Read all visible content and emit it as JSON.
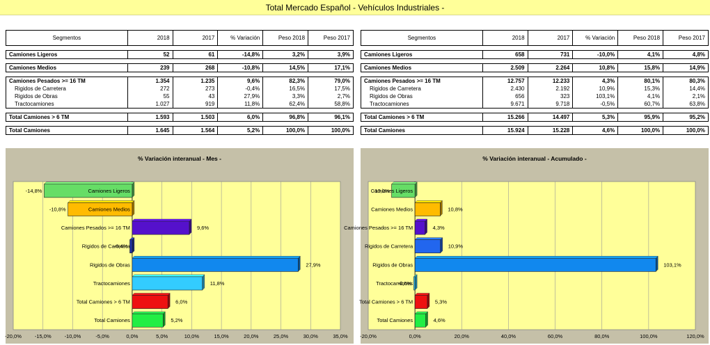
{
  "title": "Total Mercado Español - Vehículos Industriales -",
  "columns": [
    "Segmentos",
    "2018",
    "2017",
    "% Variación",
    "Peso 2018",
    "Peso 2017"
  ],
  "left_table": {
    "rows": [
      {
        "label": "Camiones Ligeros",
        "v2018": "52",
        "v2017": "61",
        "var": "-14,8%",
        "p2018": "3,2%",
        "p2017": "3,9%"
      },
      {
        "label": "Camiones Medios",
        "v2018": "239",
        "v2017": "268",
        "var": "-10,8%",
        "p2018": "14,5%",
        "p2017": "17,1%"
      },
      {
        "label": "Camiones Pesados >= 16 TM",
        "v2018": "1.354",
        "v2017": "1.235",
        "var": "9,6%",
        "p2018": "82,3%",
        "p2017": "79,0%"
      },
      {
        "label": "Rigidos de Carretera",
        "v2018": "272",
        "v2017": "273",
        "var": "-0,4%",
        "p2018": "16,5%",
        "p2017": "17,5%"
      },
      {
        "label": "Rigidos de Obras",
        "v2018": "55",
        "v2017": "43",
        "var": "27,9%",
        "p2018": "3,3%",
        "p2017": "2,7%"
      },
      {
        "label": "Tractocamiones",
        "v2018": "1.027",
        "v2017": "919",
        "var": "11,8%",
        "p2018": "62,4%",
        "p2017": "58,8%"
      },
      {
        "label": "Total Camiones  > 6 TM",
        "v2018": "1.593",
        "v2017": "1.503",
        "var": "6,0%",
        "p2018": "96,8%",
        "p2017": "96,1%"
      },
      {
        "label": "Total Camiones",
        "v2018": "1.645",
        "v2017": "1.564",
        "var": "5,2%",
        "p2018": "100,0%",
        "p2017": "100,0%"
      }
    ]
  },
  "right_table": {
    "rows": [
      {
        "label": "Camiones Ligeros",
        "v2018": "658",
        "v2017": "731",
        "var": "-10,0%",
        "p2018": "4,1%",
        "p2017": "4,8%"
      },
      {
        "label": "Camiones Medios",
        "v2018": "2.509",
        "v2017": "2.264",
        "var": "10,8%",
        "p2018": "15,8%",
        "p2017": "14,9%"
      },
      {
        "label": "Camiones Pesados >= 16 TM",
        "v2018": "12.757",
        "v2017": "12.233",
        "var": "4,3%",
        "p2018": "80,1%",
        "p2017": "80,3%"
      },
      {
        "label": "Rigidos de Carretera",
        "v2018": "2.430",
        "v2017": "2.192",
        "var": "10,9%",
        "p2018": "15,3%",
        "p2017": "14,4%"
      },
      {
        "label": "Rigidos de Obras",
        "v2018": "656",
        "v2017": "323",
        "var": "103,1%",
        "p2018": "4,1%",
        "p2017": "2,1%"
      },
      {
        "label": "Tractocamiones",
        "v2018": "9.671",
        "v2017": "9.718",
        "var": "-0,5%",
        "p2018": "60,7%",
        "p2017": "63,8%"
      },
      {
        "label": "Total Camiones  > 6 TM",
        "v2018": "15.266",
        "v2017": "14.497",
        "var": "5,3%",
        "p2018": "95,9%",
        "p2017": "95,2%"
      },
      {
        "label": "Total Camiones",
        "v2018": "15.924",
        "v2017": "15.228",
        "var": "4,6%",
        "p2018": "100,0%",
        "p2017": "100,0%"
      }
    ]
  },
  "chart_data": [
    {
      "type": "bar",
      "orientation": "horizontal",
      "title": "% Variación interanual - Mes -",
      "categories": [
        "Camiones Ligeros",
        "Camiones Medios",
        "Camiones Pesados >= 16 TM",
        "Rigidos de Carretera",
        "Rigidos de Obras",
        "Tractocamiones",
        "Total Camiones  > 6 TM",
        "Total Camiones"
      ],
      "values": [
        -14.8,
        -10.8,
        9.6,
        -0.4,
        27.9,
        11.8,
        6.0,
        5.2
      ],
      "data_labels": [
        "-14,8%",
        "-10,8%",
        "9,6%",
        "-0,4%",
        "27,9%",
        "11,8%",
        "6,0%",
        "5,2%"
      ],
      "xlim": [
        -20,
        35
      ],
      "xticks": [
        "-20,0%",
        "-15,0%",
        "-10,0%",
        "-5,0%",
        "0,0%",
        "5,0%",
        "10,0%",
        "15,0%",
        "20,0%",
        "25,0%",
        "30,0%",
        "35,0%"
      ],
      "grid": true,
      "colors": [
        "#66dd66",
        "#ffbb00",
        "#5511cc",
        "#2233aa",
        "#1188ee",
        "#33ccff",
        "#ee1111",
        "#22ee44"
      ]
    },
    {
      "type": "bar",
      "orientation": "horizontal",
      "title": "% Variación interanual - Acumulado -",
      "categories": [
        "Camiones Ligeros",
        "Camiones Medios",
        "Camiones Pesados >= 16 TM",
        "Rigidos de Carretera",
        "Rigidos de Obras",
        "Tractocamiones",
        "Total Camiones  > 6 TM",
        "Total Camiones"
      ],
      "values": [
        -10.0,
        10.8,
        4.3,
        10.9,
        103.1,
        -0.5,
        5.3,
        4.6
      ],
      "data_labels": [
        "-10,0%",
        "10,8%",
        "4,3%",
        "10,9%",
        "103,1%",
        "-0,5%",
        "5,3%",
        "4,6%"
      ],
      "xlim": [
        -20,
        120
      ],
      "xticks": [
        "-20,0%",
        "0,0%",
        "20,0%",
        "40,0%",
        "60,0%",
        "80,0%",
        "100,0%",
        "120,0%"
      ],
      "grid": true,
      "colors": [
        "#66dd66",
        "#ffbb00",
        "#5511cc",
        "#2266ee",
        "#1188ee",
        "#33ccff",
        "#ee1111",
        "#22ee44"
      ]
    }
  ]
}
